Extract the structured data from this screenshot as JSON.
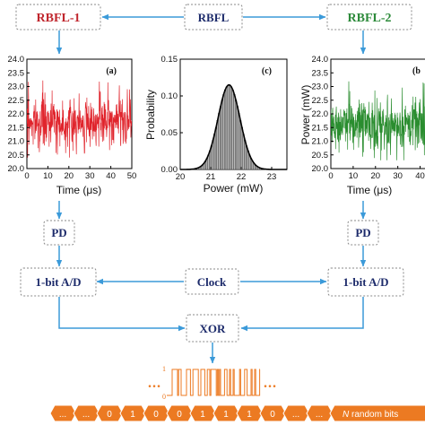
{
  "colors": {
    "arrow": "#3b9ad9",
    "node_text": "#1d2b6b",
    "rbfl1": "#c0262d",
    "rbfl2": "#2c8a3a",
    "trace1": "#e0242c",
    "trace2": "#2a8d2f",
    "bits": "#ec7a22",
    "box_border": "#8a8a8a"
  },
  "nodes": {
    "rbfl": "RBFL",
    "rbfl1": "RBFL-1",
    "rbfl2": "RBFL-2",
    "pd_left": "PD",
    "pd_right": "PD",
    "ad_left": "1-bit A/D",
    "ad_right": "1-bit A/D",
    "clock": "Clock",
    "xor": "XOR"
  },
  "bitstream": {
    "bits": [
      "0",
      "1",
      "0",
      "0",
      "1",
      "1",
      "1",
      "0"
    ],
    "ellipsis": "...",
    "suffix_italic": "N",
    "suffix": " random bits",
    "waveform_dots": "...",
    "level_high": "1",
    "level_low": "0"
  },
  "chart_data": [
    {
      "type": "line",
      "panel": "(a)",
      "xlabel": "Time (μs)",
      "ylabel": "",
      "xlim": [
        0,
        50
      ],
      "ylim": [
        20.0,
        24.0
      ],
      "xticks": [
        "0",
        "10",
        "20",
        "30",
        "40",
        "50"
      ],
      "yticks": [
        "20.0",
        "20.5",
        "21.0",
        "21.5",
        "22.0",
        "22.5",
        "23.0",
        "23.5",
        "24.0"
      ],
      "series": [
        {
          "mean": 21.7,
          "spread_min": 20.4,
          "spread_max": 23.3
        }
      ]
    },
    {
      "type": "bar",
      "panel": "(c)",
      "xlabel": "Power (mW)",
      "ylabel": "Probability",
      "xlim": [
        20,
        23.5
      ],
      "ylim": [
        0.0,
        0.15
      ],
      "xticks": [
        "20",
        "21",
        "22",
        "23"
      ],
      "yticks": [
        "0.00",
        "0.05",
        "0.10",
        "0.15"
      ],
      "fit": {
        "mean": 21.6,
        "sigma": 0.36,
        "peak": 0.115
      }
    },
    {
      "type": "line",
      "panel": "(b",
      "xlabel": "Time (μs)",
      "ylabel": "Power (mW)",
      "xlim": [
        0,
        45
      ],
      "ylim": [
        20.0,
        24.0
      ],
      "xticks": [
        "0",
        "10",
        "20",
        "30",
        "40"
      ],
      "yticks": [
        "20.0",
        "20.5",
        "21.0",
        "21.5",
        "22.0",
        "22.5",
        "23.0",
        "23.5",
        "24.0"
      ],
      "series": [
        {
          "mean": 21.6,
          "spread_min": 20.3,
          "spread_max": 23.4
        }
      ]
    }
  ]
}
